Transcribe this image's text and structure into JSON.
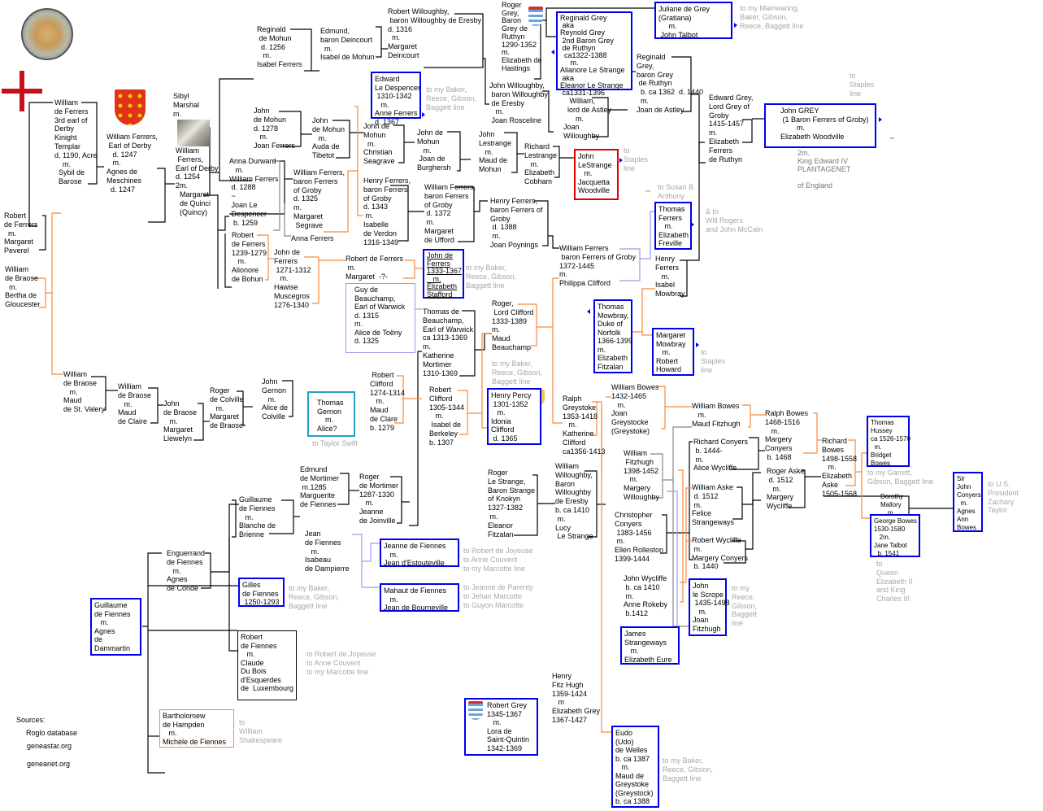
{
  "colors": {
    "box": "#0000ee",
    "red_box": "#e00000",
    "cyan_box": "#22a0c8",
    "lavender_line": "#9a9af0",
    "orange_line": "#f58a3c",
    "gray_text": "#a8a8a8"
  },
  "icons": [
    "templar-seal-icon",
    "templar-cross-icon",
    "ferrers-shield-icon",
    "effigy-photo",
    "grey-shield-icon",
    "percy-shield-icon",
    "clifford-shield-icon",
    "nav-arrow-icon"
  ],
  "persons": {
    "william_ferrers_3rd": "William\nde Ferrers\n3rd earl of\nDerby\nKinight\nTemplar\nd. 1190, Acre\n    m.\n  Sybil de\n  Barose",
    "william_ferrers_1247": "William Ferrers,\n Earl of Derby\n   d. 1247\n   m.\nAgnes de\nMeschines\n  d. 1247",
    "sibyl_marshal": "Sibyl\nMarshal\nm.",
    "william_ferrers_1254": "William\n Ferrers,\nEarl of Derby\nd. 1254\n2m.\n  Margaret\n  de Quinci\n  (Quincy)",
    "robert_ferrers_peverel": "Robert\nde Ferrers\n  m.\nMargaret\nPeverel",
    "william_braose_bertha": "William\nde Braose\n  m.\nBertha de\nGloucester",
    "reginald_mohun": "Reginald\n de Mohun\n  d. 1256\n   m.\nIsabel Ferrers",
    "edmund_deincourt": "Edmund,\nbaron Deincourt\n  m.\nIsabel de Mohun",
    "robert_willoughby": "Robert Willoughby,\n baron Willoughby de Eresby\nd. 1316\n  m.\nMargaret\nDeincourt",
    "roger_grey": "Roger\nGrey,\nBaron\nGrey de\nRuthyn\n1290-1352\nm.\nElizabeth de\nHastings",
    "reginald_grey_2nd": "Reginald Grey\n aka\nReynold Grey\n 2nd Baron Grey\n de Ruthyn\n  ca1322-1388\n     m.\nAlianore Le Strange\n aka\nEleanor Le Strange\n ca1331-1396",
    "juliane_grey": "Juliane de Grey\n(Gratiana)\n     m.\n John Talbot",
    "reginald_grey_1440": "Reginald\nGrey,\nbaron Grey\n de Ruthyn\n  b. ca 1362  d. 1440\n  m.\nJoan de Astley",
    "john_willoughby": "John Willoughby,\n baron Willoughby\n de Eresby\n   m.\n Joan Rosceline",
    "william_astley": "   William,\n  lord de Astley\n      m.\nJoan\nWilloughby",
    "edward_grey": "Edward Grey,\nLord Grey of\nGroby\n1415-1457\nm.\nElizabeth\nFerrers\nde Ruthyn",
    "john_grey": "John GREY\n (1 Baron Ferrers of Groby)\n        m.\nElizabeth Woodville",
    "edward_iv": "2m.\nKing Edward IV\nPLANTAGENET\n\nof England",
    "edward_despencer": "Edward\nLe Despencer\n 1310-1342\n   m.\nAnne Ferrers\nd. 1367",
    "john_mohun_1278": "John\nde Mohun\nd. 1278\n   m.\nJoan Ferrers",
    "john_mohun_tibetot": "John\nde Mohun\n   m.\nAuda de\nTibetot",
    "john_mohun_seagrave": "John de\nMohun\n  m.\nChristian\nSeagrave",
    "john_mohun_burghersh": "John de\nMohun\n   m.\n Joan de\nBurghersh",
    "john_lestrange": "John\nLestrange\n   m.\nMaud de\nMohun",
    "richard_lestrange": "Richard\nLestrange\n   m.\nElizabeth\nCobham",
    "john_lestrange_woodville": "John\nLeStrange\n   m.\nJacquetta\nWoodville",
    "anna_durward": "Anna Durward\n   m.\nWilliam Ferrers\n d. 1288\n ~\n Joan Le\n Despencer\n  b. 1259",
    "william_ferrers_1325": "William Ferrers,\nbaron Ferrers\nof Groby\nd. 1325\nm.\nMargaret\n Segrave",
    "anna_ferrers": "Anna Ferrers",
    "henry_ferrers_1343": "Henry Ferrers,\nbaron Ferrers\nof Groby\nd. 1343\n m.\nIsabelle\nde Verdon\n1316-1349",
    "william_ferrers_1372": "William Ferrers,\nbaron Ferrers\nof Groby\n d. 1372\n m.\nMargaret\nde Ufford",
    "henry_ferrers_1388": "Henry Ferrers,\nbaron Ferrers of\nGroby\n d. 1388\n m.\nJoan Poynings",
    "thomas_ferrers": "Thomas\nFerrers\n   m.\nElizabeth\nFreville",
    "william_ferrers_1445": "William Ferrers\n baron Ferrers of Groby\n1372-1445\nm.\nPhilippa Clifford",
    "henry_ferrers_mowbray": "Henry\nFerrers\n   m.\nIsabel\nMowbray",
    "robert_ferrers_1279": "Robert\nde Ferrers\n1239-1279\n   m.\nAlionore\nde Bohun",
    "john_ferrers_1312": "John de\nFerrers\n 1271-1312\n   m.\nHawise\nMuscegros\n1276-1340",
    "robert_ferrers_margaret": "Robert de Ferrers\n m.\nMargaret  -?-",
    "john_ferrers_stafford": "John de\nFerrers\n1333-1367\n   m.\nElizabeth\nStafford",
    "guy_beauchamp": "Guy de\nBeauchamp,\nEarl of Warwick\nd. 1315\nm.\nAlice de Toëny\nd. 1325",
    "thomas_beauchamp": "Thomas de\nBeauchamp,\nEarl of Warwick\nca 1313-1369\nm.\nKatherine\nMortimer\n1310-1369",
    "roger_clifford": "Roger,\n Lord Clifford\n1333-1389\nm.\nMaud\nBeauchamp",
    "henry_percy": "Henry Percy\n 1301-1352\n   m.\nIdonia\nClifford\n d. 1365",
    "thomas_mowbray": "Thomas\nMowbray,\nDuke of\nNorfolk\n1366-1399\nm.\nElizabeth\nFitzalan",
    "margaret_mowbray": "Margaret\nMowbray\n   m.\nRobert\nHoward",
    "william_braose_valery": "William\nde Braose\n   m.\nMaud\nde St. Valery",
    "william_braose_claire": "William\nde Braose\n   m.\nMaud\nde Claire",
    "john_braose": "John\nde Braose\n   m.\nMargaret\nLlewelyn",
    "roger_colville": "Roger\nde Colville\n   m.\nMargaret\nde Braose",
    "john_gernon": "John\nGernon\n   m.\nAlice de\nColville",
    "thomas_gernon": "Thomas\nGernon\n    m.\nAlice?",
    "robert_clifford_1314": " Robert\nClifford\n1274-1314\n   m.\nMaud\nde Clare\nb. 1279",
    "robert_clifford_1344": "Robert\nClifford\n1305-1344\n   m.\n Isabel de\nBerkeley\nb. 1307",
    "ralph_greystoke": "Ralph\nGreystoke\n1353-1418\n   m.\nKatherine\nClifford\nca1356-1413",
    "william_bowes_1465": "William Bowes\n1432-1465\n   m.\nJoan\nGreystocke\n(Greystoke)",
    "william_bowes_fitzhugh": "William Bowes\n   m.\nMaud Fitzhugh",
    "ralph_bowes": "Ralph Bowes\n1468-1516\n   m.\nMargery\nConyers\n b. 1468",
    "richard_bowes": "Richard\nBowes\n1498-1558\n   m.\nElizabeth\nAske\n1505-1568",
    "thomas_hussey": "Thomas\nHussey\nca 1526-1570\n  m.\nBridget\nBowes",
    "dorothy_mallory": "Dorothy\nMallory\n    m.",
    "george_bowes": "George Bowes\n1530-1580\n   2m.\nJane Talbot\n  b. 1541",
    "john_conyers": "Sir\nJohn\nConyers\n  m.\nAgnes\nAnn\nBowes",
    "richard_conyers": "Richard Conyers\n b. 1444-\n m.\nAlice Wycliffe",
    "william_fitzhugh": "William\n Fitzhugh\n1398-1452\n   m.\nMargery\nWilloughby",
    "roger_aske": "Roger Aske\n d. 1512\n   m.\nMargery\nWycliffe",
    "william_aske": "William Aske\n d. 1512\n m.\nFelice\nStrangeways",
    "christopher_conyers": "Christopher\nConyers\n 1383-1456\n m.\nEllen Rolleston\n1399-1444",
    "robert_wycliffe": "Robert Wycliffe\n m.\nMargery Conyers\n b. 1440",
    "john_wycliffe": "John Wycliffe\n b. ca 1410\n m.\nAnne Rokeby\n b.1412",
    "john_scrope": "John\nle Scrope\n 1435-1498\n   m.\nJoan\nFitzhugh",
    "james_strangeways": "James\nStrangeways\n   m.\nElizabeth Eure",
    "william_willoughby_1410": "William\nWilloughby,\nBaron\nWilloughby\nde Eresby\nb. ca 1410\n m.\nLucy\n Le Strange",
    "roger_le_strange": "Roger\nLe Strange,\nBaron Strange\nof Knokyn\n1327-1382\n m.\nEleanor\nFitzalan",
    "edmund_mortimer": "Edmund\nde Mortimer\n m.1285\nMarguerite\nde Fiennes",
    "roger_mortimer": "Roger\nde Mortimer\n1287-1330\n   m.\nJeanne\nde Joinville",
    "guillaume_fiennes_blanche": "Guillaume\nde Fiennes\n   m.\nBlanche de\nBrienne",
    "jean_fiennes": "Jean\nde Fiennes\n   m.\nIsabeau\nde Dampierre",
    "jeanne_fiennes": "Jeanne de Fiennes\n   m.\nJean d'Estouteville",
    "mahaut_fiennes": "Mahaut de Fiennes\n   m.\nJean de Bourneville",
    "enguerrand_fiennes": "Enguerrand\nde Fiennes\n   m.\nAgnes\nde Condé",
    "gilles_fiennes": "Gilles\nde Fiennes\n 1250-1293",
    "guillaume_fiennes_dammartin": "Guillaume\nde Fiennes\n   m.\nAgnes\nde\nDammartin",
    "robert_fiennes": "Robert\nde Fiennes\n   m.\nClaude\nDu Bois\nd'Esquerdes\nde  Luxembourg",
    "bartholomew_hampden": "Bartholomew\nde Hampden\n   m.\nMichèle de Fiennes",
    "henry_fitzhugh": "Henry\nFitz Hugh\n1359-1424\n   m\nElizabeth Grey\n1367-1427",
    "robert_grey": "Robert Grey\n1345-1367\n   m.\nLora de\nSaint-Quintin\n1342-1369",
    "eudo_welles": "Eudo\n(Udo)\nde Welles\nb. ca 1387\n   m.\nMaud de\nGreystoke\n(Greystock)\nb. ca 1388"
  },
  "links": {
    "mainwaring": "to my Mainwaring,\nBaker, Gibson,\nReece, Baggett line",
    "staples_1": "to\nStaples\nline",
    "baker_1": "to my Baker,\nReece, Gibson,\nBaggett line",
    "staples_2": "to\nStaples\nline",
    "susan_anthony": "to Susan B.\nAnthony",
    "will_rogers": "& to\nWill Rogers\nand John McCain",
    "baker_2": "to my Baker,\nReece, Gibson,\nBaggett line",
    "baker_3": "to my Baker,\nReece, Gibson,\nBaggett line",
    "staples_3": "to\nStaples\nline",
    "taylor_swift": "to Taylor Swift",
    "garrett": "to my Garrett,\nGibson, Baggett line",
    "queen": "to\nQueen\nElizabeth II\nand King\nCharles III",
    "zachary_taylor": "to U.S.\nPresident\nZachary\nTaylor",
    "reece": "to my\nReece,\nGibson,\nBaggett\nline",
    "joyeuse_1": "to Robert de Joyeuse\nto Anne Couvent\nto my Marcotte line",
    "parenty": "to Jeanne de Parenty\nto Jehan Marcotte\nto Guyon Marcotte",
    "baker_4": "to my Baker,\nReece, Gibson,\nBaggett line",
    "joyeuse_2": "to Robert de Joyeuse\nto Anne Couvent\nto my Marcotte line",
    "shakespeare": "to\nWilliam\nShakespeare",
    "baker_5": "to my Baker,\nReece, Gibson,\nBaggett line"
  },
  "sources": {
    "label": "Sources:",
    "items": [
      "Roglo database",
      "geneastar.org",
      "geneanet.org"
    ]
  }
}
